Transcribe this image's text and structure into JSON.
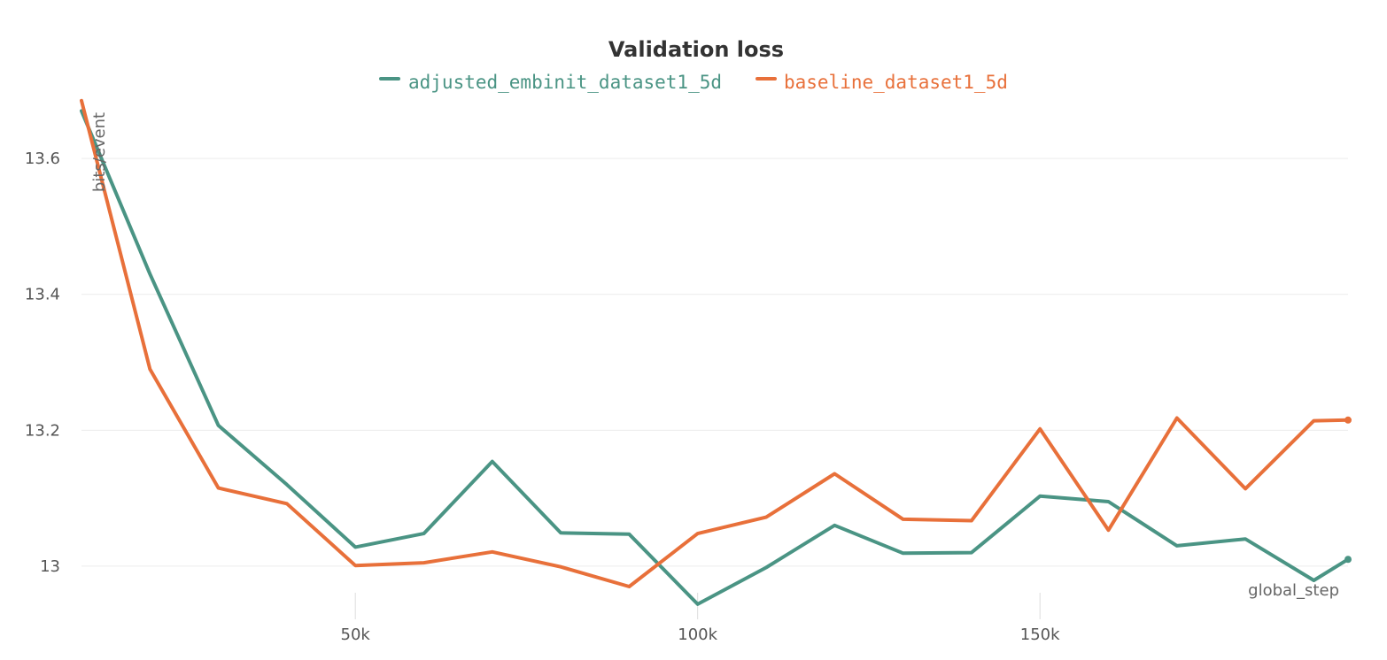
{
  "chart_data": {
    "type": "line",
    "title": "Validation loss",
    "xlabel": "global_step",
    "ylabel": "bits/event",
    "xlim": [
      10000,
      195000
    ],
    "ylim": [
      12.94,
      13.69
    ],
    "x_ticks": [
      {
        "value": 50000,
        "label": "50k"
      },
      {
        "value": 100000,
        "label": "100k"
      },
      {
        "value": 150000,
        "label": "150k"
      }
    ],
    "y_ticks": [
      {
        "value": 13.0,
        "label": "13"
      },
      {
        "value": 13.2,
        "label": "13.2"
      },
      {
        "value": 13.4,
        "label": "13.4"
      },
      {
        "value": 13.6,
        "label": "13.6"
      }
    ],
    "grid": true,
    "legend_position": "top-center",
    "series": [
      {
        "name": "adjusted_embinit_dataset1_5d",
        "color": "#4a9484",
        "x": [
          10000,
          20000,
          30000,
          40000,
          50000,
          60000,
          70000,
          80000,
          90000,
          100000,
          110000,
          120000,
          130000,
          140000,
          150000,
          160000,
          170000,
          180000,
          190000,
          195000
        ],
        "y": [
          13.67,
          13.43,
          13.207,
          13.12,
          13.028,
          13.048,
          13.154,
          13.049,
          13.047,
          12.944,
          12.998,
          13.06,
          13.019,
          13.02,
          13.103,
          13.095,
          13.03,
          13.04,
          12.979,
          13.01
        ]
      },
      {
        "name": "baseline_dataset1_5d",
        "color": "#e8703a",
        "x": [
          10000,
          20000,
          30000,
          40000,
          50000,
          60000,
          70000,
          80000,
          90000,
          100000,
          110000,
          120000,
          130000,
          140000,
          150000,
          160000,
          170000,
          180000,
          190000,
          195000
        ],
        "y": [
          13.685,
          13.29,
          13.115,
          13.092,
          13.001,
          13.005,
          13.021,
          12.999,
          12.97,
          13.048,
          13.072,
          13.136,
          13.069,
          13.067,
          13.202,
          13.053,
          13.218,
          13.114,
          13.214,
          13.215
        ]
      }
    ]
  }
}
